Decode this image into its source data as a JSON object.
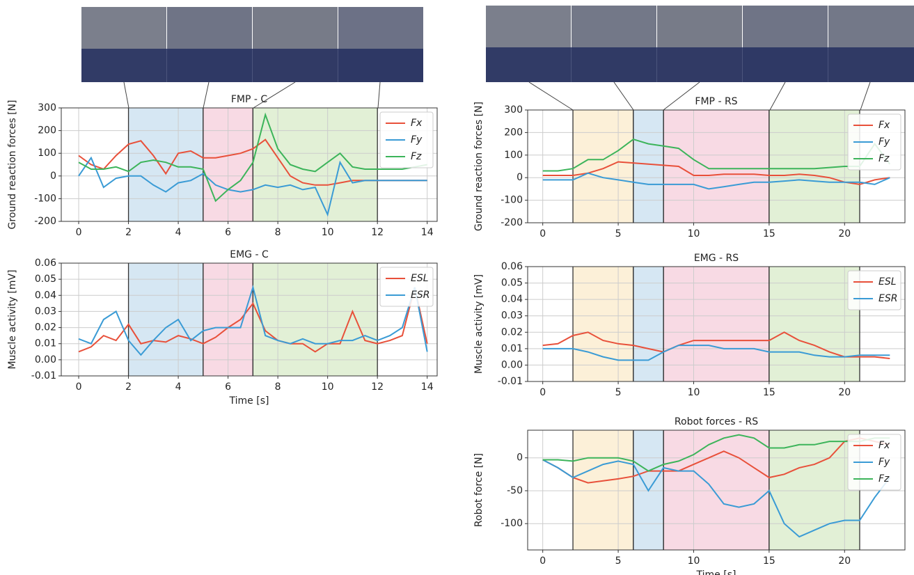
{
  "chart_data": [
    {
      "type": "line",
      "title": "FMP - C",
      "y_label": "Ground reaction forces [N]",
      "x": [
        0,
        0.5,
        1,
        1.5,
        2,
        2.5,
        3,
        3.5,
        4,
        4.5,
        5,
        5.5,
        6,
        6.5,
        7,
        7.5,
        8,
        8.5,
        9,
        9.5,
        10,
        10.5,
        11,
        11.5,
        12,
        12.5,
        13,
        13.5,
        14
      ],
      "series": [
        {
          "name": "Fx",
          "color": "#e8503a",
          "values": [
            90,
            50,
            30,
            90,
            140,
            155,
            90,
            10,
            100,
            110,
            80,
            80,
            90,
            100,
            120,
            160,
            80,
            0,
            -30,
            -40,
            -40,
            -30,
            -20,
            -20,
            -20,
            -20,
            -20,
            -20,
            -20
          ]
        },
        {
          "name": "Fy",
          "color": "#3a9bd5",
          "values": [
            0,
            80,
            -50,
            -10,
            0,
            0,
            -40,
            -70,
            -30,
            -20,
            10,
            -40,
            -60,
            -70,
            -60,
            -40,
            -50,
            -40,
            -60,
            -50,
            -170,
            60,
            -30,
            -20,
            -20,
            -20,
            -20,
            -20,
            -20
          ]
        },
        {
          "name": "Fz",
          "color": "#3cb45a",
          "values": [
            60,
            30,
            30,
            40,
            20,
            60,
            70,
            60,
            40,
            40,
            30,
            -110,
            -60,
            -20,
            60,
            270,
            120,
            50,
            30,
            20,
            60,
            100,
            40,
            30,
            30,
            30,
            30,
            40,
            50
          ]
        }
      ],
      "phases": [
        {
          "start": 2,
          "end": 5,
          "color": "#d6e7f3"
        },
        {
          "start": 5,
          "end": 7,
          "color": "#f8dae4"
        },
        {
          "start": 7,
          "end": 12,
          "color": "#e2f0d6"
        }
      ],
      "xlim": [
        -0.7,
        14.4
      ],
      "xticks": [
        0,
        2,
        4,
        6,
        8,
        10,
        12,
        14
      ],
      "ylim": [
        -200,
        300
      ],
      "yticks": [
        -200,
        -100,
        0,
        100,
        200,
        300
      ],
      "grid": true,
      "legend": "upper right"
    },
    {
      "type": "line",
      "title": "EMG - C",
      "y_label": "Muscle activity [mV]",
      "x_label": "Time [s]",
      "x": [
        0,
        0.5,
        1,
        1.5,
        2,
        2.5,
        3,
        3.5,
        4,
        4.5,
        5,
        5.5,
        6,
        6.5,
        7,
        7.5,
        8,
        8.5,
        9,
        9.5,
        10,
        10.5,
        11,
        11.5,
        12,
        12.5,
        13,
        13.5,
        14
      ],
      "series": [
        {
          "name": "ESL",
          "color": "#e8503a",
          "values": [
            0.005,
            0.008,
            0.015,
            0.012,
            0.022,
            0.01,
            0.012,
            0.011,
            0.015,
            0.013,
            0.01,
            0.014,
            0.02,
            0.025,
            0.035,
            0.018,
            0.012,
            0.01,
            0.01,
            0.005,
            0.01,
            0.01,
            0.03,
            0.012,
            0.01,
            0.012,
            0.015,
            0.045,
            0.01
          ]
        },
        {
          "name": "ESR",
          "color": "#3a9bd5",
          "values": [
            0.013,
            0.01,
            0.025,
            0.03,
            0.012,
            0.003,
            0.012,
            0.02,
            0.025,
            0.012,
            0.018,
            0.02,
            0.02,
            0.02,
            0.045,
            0.015,
            0.012,
            0.01,
            0.013,
            0.01,
            0.01,
            0.012,
            0.012,
            0.015,
            0.012,
            0.015,
            0.02,
            0.045,
            0.005
          ]
        }
      ],
      "phases": [
        {
          "start": 2,
          "end": 5,
          "color": "#d6e7f3"
        },
        {
          "start": 5,
          "end": 7,
          "color": "#f8dae4"
        },
        {
          "start": 7,
          "end": 12,
          "color": "#e2f0d6"
        }
      ],
      "xlim": [
        -0.7,
        14.4
      ],
      "xticks": [
        0,
        2,
        4,
        6,
        8,
        10,
        12,
        14
      ],
      "ylim": [
        -0.01,
        0.06
      ],
      "yticks": [
        -0.01,
        {
          "value": 0,
          "label": "0.00"
        },
        0.01,
        0.02,
        0.03,
        0.04,
        0.05,
        0.06
      ],
      "grid": true,
      "legend": "upper right"
    },
    {
      "type": "line",
      "title": "FMP - RS",
      "y_label": "Ground reaction forces [N]",
      "x": [
        0,
        1,
        2,
        3,
        4,
        5,
        6,
        7,
        8,
        9,
        10,
        11,
        12,
        13,
        14,
        15,
        16,
        17,
        18,
        19,
        20,
        21,
        22,
        23
      ],
      "series": [
        {
          "name": "Fx",
          "color": "#e8503a",
          "values": [
            10,
            10,
            10,
            20,
            40,
            70,
            65,
            60,
            55,
            50,
            10,
            10,
            15,
            15,
            15,
            10,
            10,
            15,
            10,
            0,
            -20,
            -30,
            -10,
            0
          ]
        },
        {
          "name": "Fy",
          "color": "#3a9bd5",
          "values": [
            -10,
            -10,
            -10,
            20,
            0,
            -10,
            -20,
            -30,
            -30,
            -30,
            -30,
            -50,
            -40,
            -30,
            -20,
            -20,
            -15,
            -10,
            -15,
            -20,
            -20,
            -20,
            -30,
            0
          ]
        },
        {
          "name": "Fz",
          "color": "#3cb45a",
          "values": [
            30,
            30,
            40,
            80,
            80,
            120,
            170,
            150,
            140,
            130,
            80,
            40,
            40,
            40,
            40,
            40,
            40,
            40,
            40,
            45,
            50,
            50,
            150,
            60
          ]
        }
      ],
      "phases": [
        {
          "start": 2,
          "end": 6,
          "color": "#fcf0d8"
        },
        {
          "start": 6,
          "end": 8,
          "color": "#d6e7f3"
        },
        {
          "start": 8,
          "end": 15,
          "color": "#f8dae4"
        },
        {
          "start": 15,
          "end": 21,
          "color": "#e2f0d6"
        }
      ],
      "xlim": [
        -1,
        24
      ],
      "xticks": [
        0,
        5,
        10,
        15,
        20
      ],
      "ylim": [
        -200,
        300
      ],
      "yticks": [
        -200,
        -100,
        0,
        100,
        200,
        300
      ],
      "grid": true,
      "legend": "upper right"
    },
    {
      "type": "line",
      "title": "EMG - RS",
      "y_label": "Muscle activity [mV]",
      "x": [
        0,
        1,
        2,
        3,
        4,
        5,
        6,
        7,
        8,
        9,
        10,
        11,
        12,
        13,
        14,
        15,
        16,
        17,
        18,
        19,
        20,
        21,
        22,
        23
      ],
      "series": [
        {
          "name": "ESL",
          "color": "#e8503a",
          "values": [
            0.012,
            0.013,
            0.018,
            0.02,
            0.015,
            0.013,
            0.012,
            0.01,
            0.008,
            0.012,
            0.015,
            0.015,
            0.015,
            0.015,
            0.015,
            0.015,
            0.02,
            0.015,
            0.012,
            0.008,
            0.005,
            0.005,
            0.005,
            0.004
          ]
        },
        {
          "name": "ESR",
          "color": "#3a9bd5",
          "values": [
            0.01,
            0.01,
            0.01,
            0.008,
            0.005,
            0.003,
            0.003,
            0.003,
            0.008,
            0.012,
            0.012,
            0.012,
            0.01,
            0.01,
            0.01,
            0.008,
            0.008,
            0.008,
            0.006,
            0.005,
            0.005,
            0.006,
            0.006,
            0.006
          ]
        }
      ],
      "phases": [
        {
          "start": 2,
          "end": 6,
          "color": "#fcf0d8"
        },
        {
          "start": 6,
          "end": 8,
          "color": "#d6e7f3"
        },
        {
          "start": 8,
          "end": 15,
          "color": "#f8dae4"
        },
        {
          "start": 15,
          "end": 21,
          "color": "#e2f0d6"
        }
      ],
      "xlim": [
        -1,
        24
      ],
      "xticks": [
        0,
        5,
        10,
        15,
        20
      ],
      "ylim": [
        -0.01,
        0.06
      ],
      "yticks": [
        -0.01,
        {
          "value": 0,
          "label": "0.00"
        },
        0.01,
        0.02,
        0.03,
        0.04,
        0.05,
        0.06
      ],
      "grid": true,
      "legend": "upper right"
    },
    {
      "type": "line",
      "title": "Robot forces - RS",
      "y_label": "Robot force [N]",
      "x_label": "Time [s]",
      "x": [
        0,
        1,
        2,
        3,
        4,
        5,
        6,
        7,
        8,
        9,
        10,
        11,
        12,
        13,
        14,
        15,
        16,
        17,
        18,
        19,
        20,
        21,
        22,
        23
      ],
      "series": [
        {
          "name": "Fx",
          "color": "#e8503a",
          "values": [
            -3,
            -15,
            -30,
            -38,
            -35,
            -32,
            -28,
            -20,
            -20,
            -20,
            -10,
            0,
            10,
            0,
            -15,
            -30,
            -25,
            -15,
            -10,
            0,
            25,
            30,
            25,
            20
          ]
        },
        {
          "name": "Fy",
          "color": "#3a9bd5",
          "values": [
            -3,
            -15,
            -30,
            -20,
            -10,
            -5,
            -10,
            -50,
            -15,
            -20,
            -20,
            -40,
            -70,
            -75,
            -70,
            -50,
            -100,
            -120,
            -110,
            -100,
            -95,
            -95,
            -60,
            -30
          ]
        },
        {
          "name": "Fz",
          "color": "#3cb45a",
          "values": [
            -3,
            -3,
            -5,
            0,
            0,
            0,
            -5,
            -20,
            -10,
            -5,
            5,
            20,
            30,
            35,
            30,
            15,
            15,
            20,
            20,
            25,
            25,
            25,
            30,
            30
          ]
        }
      ],
      "phases": [
        {
          "start": 2,
          "end": 6,
          "color": "#fcf0d8"
        },
        {
          "start": 6,
          "end": 8,
          "color": "#d6e7f3"
        },
        {
          "start": 8,
          "end": 15,
          "color": "#f8dae4"
        },
        {
          "start": 15,
          "end": 21,
          "color": "#e2f0d6"
        }
      ],
      "xlim": [
        -1,
        24
      ],
      "xticks": [
        0,
        5,
        10,
        15,
        20
      ],
      "ylim": [
        -140,
        42
      ],
      "yticks": [
        -100,
        -50,
        0
      ],
      "grid": true,
      "legend": "upper right"
    }
  ]
}
